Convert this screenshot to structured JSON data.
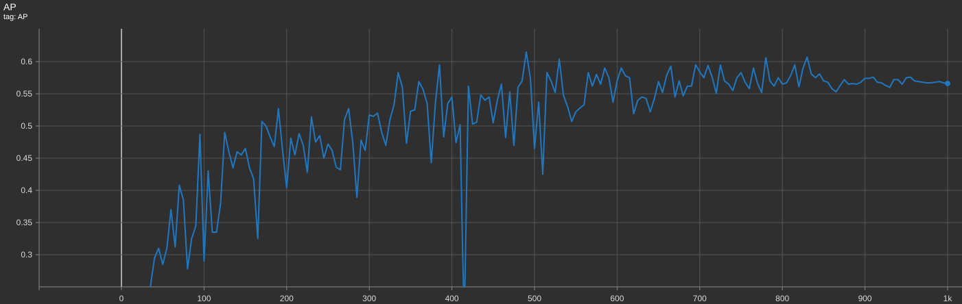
{
  "header": {
    "title": "AP",
    "subtitle": "tag: AP"
  },
  "colors": {
    "background": "#2f2f2f",
    "grid": "#555555",
    "axis": "#8a8a8a",
    "zero_line": "#cfcfcf",
    "series": "#1f78c1"
  },
  "chart_data": {
    "type": "line",
    "title": "AP",
    "subtitle": "tag: AP",
    "xlabel": "",
    "ylabel": "",
    "xlim": [
      -100,
      1000
    ],
    "ylim": [
      0.25,
      0.65
    ],
    "grid": true,
    "legend": "none",
    "x_ticks": [
      {
        "value": 0,
        "label": "0"
      },
      {
        "value": 100,
        "label": "100"
      },
      {
        "value": 200,
        "label": "200"
      },
      {
        "value": 300,
        "label": "300"
      },
      {
        "value": 400,
        "label": "400"
      },
      {
        "value": 500,
        "label": "500"
      },
      {
        "value": 600,
        "label": "600"
      },
      {
        "value": 700,
        "label": "700"
      },
      {
        "value": 800,
        "label": "800"
      },
      {
        "value": 900,
        "label": "900"
      },
      {
        "value": 1000,
        "label": "1k"
      }
    ],
    "y_ticks": [
      {
        "value": 0.3,
        "label": "0.3"
      },
      {
        "value": 0.35,
        "label": "0.35"
      },
      {
        "value": 0.4,
        "label": "0.4"
      },
      {
        "value": 0.45,
        "label": "0.45"
      },
      {
        "value": 0.5,
        "label": "0.5"
      },
      {
        "value": 0.55,
        "label": "0.55"
      },
      {
        "value": 0.6,
        "label": "0.6"
      }
    ],
    "series": [
      {
        "x": [
          35,
          40,
          45,
          50,
          55,
          60,
          65,
          70,
          75,
          80,
          85,
          90,
          95,
          100,
          105,
          110,
          115,
          120,
          125,
          130,
          135,
          140,
          145,
          150,
          155,
          160,
          165,
          170,
          175,
          180,
          185,
          190,
          195,
          200,
          205,
          210,
          215,
          220,
          225,
          230,
          235,
          240,
          245,
          250,
          255,
          260,
          265,
          270,
          275,
          280,
          285,
          290,
          295,
          300,
          305,
          310,
          315,
          320,
          325,
          330,
          335,
          340,
          345,
          350,
          355,
          360,
          365,
          370,
          375,
          380,
          385,
          390,
          395,
          400,
          405,
          410,
          413,
          415,
          420,
          425,
          430,
          435,
          440,
          445,
          450,
          455,
          460,
          465,
          470,
          475,
          480,
          485,
          490,
          495,
          500,
          505,
          510,
          515,
          520,
          525,
          530,
          535,
          540,
          545,
          550,
          555,
          560,
          565,
          570,
          575,
          580,
          585,
          590,
          595,
          600,
          605,
          610,
          615,
          620,
          625,
          630,
          635,
          640,
          645,
          650,
          655,
          660,
          665,
          670,
          675,
          680,
          685,
          690,
          695,
          700,
          705,
          710,
          715,
          720,
          725,
          730,
          735,
          740,
          745,
          750,
          755,
          760,
          765,
          770,
          775,
          780,
          785,
          790,
          795,
          800,
          805,
          810,
          815,
          820,
          825,
          830,
          835,
          840,
          845,
          850,
          855,
          860,
          865,
          870,
          875,
          880,
          885,
          890,
          895,
          900,
          905,
          910,
          915,
          920,
          925,
          930,
          935,
          940,
          945,
          950,
          955,
          960,
          965,
          970,
          975,
          980,
          985,
          990,
          995,
          1000
        ],
        "y": [
          0.25,
          0.295,
          0.31,
          0.285,
          0.31,
          0.37,
          0.312,
          0.408,
          0.385,
          0.278,
          0.325,
          0.345,
          0.487,
          0.29,
          0.43,
          0.335,
          0.335,
          0.38,
          0.49,
          0.46,
          0.435,
          0.46,
          0.455,
          0.465,
          0.435,
          0.418,
          0.325,
          0.507,
          0.5,
          0.483,
          0.468,
          0.527,
          0.462,
          0.404,
          0.481,
          0.455,
          0.488,
          0.47,
          0.428,
          0.514,
          0.475,
          0.485,
          0.45,
          0.472,
          0.462,
          0.436,
          0.432,
          0.51,
          0.527,
          0.475,
          0.389,
          0.478,
          0.462,
          0.517,
          0.515,
          0.52,
          0.49,
          0.47,
          0.51,
          0.533,
          0.583,
          0.56,
          0.473,
          0.523,
          0.525,
          0.569,
          0.557,
          0.535,
          0.443,
          0.535,
          0.595,
          0.483,
          0.535,
          0.545,
          0.474,
          0.502,
          0.3,
          0.2,
          0.562,
          0.503,
          0.506,
          0.548,
          0.54,
          0.545,
          0.505,
          0.54,
          0.565,
          0.482,
          0.553,
          0.47,
          0.56,
          0.57,
          0.615,
          0.574,
          0.465,
          0.537,
          0.425,
          0.583,
          0.57,
          0.552,
          0.604,
          0.548,
          0.53,
          0.507,
          0.522,
          0.528,
          0.533,
          0.583,
          0.562,
          0.58,
          0.565,
          0.59,
          0.575,
          0.537,
          0.57,
          0.59,
          0.578,
          0.575,
          0.519,
          0.54,
          0.545,
          0.543,
          0.522,
          0.542,
          0.569,
          0.552,
          0.579,
          0.593,
          0.545,
          0.57,
          0.547,
          0.562,
          0.562,
          0.595,
          0.584,
          0.575,
          0.594,
          0.576,
          0.551,
          0.595,
          0.57,
          0.565,
          0.555,
          0.575,
          0.583,
          0.568,
          0.558,
          0.59,
          0.566,
          0.552,
          0.606,
          0.57,
          0.562,
          0.575,
          0.565,
          0.567,
          0.578,
          0.595,
          0.561,
          0.59,
          0.607,
          0.581,
          0.575,
          0.581,
          0.57,
          0.568,
          0.558,
          0.553,
          0.563,
          0.572,
          0.565,
          0.566,
          0.565,
          0.568,
          0.574,
          0.574,
          0.576,
          0.568,
          0.567,
          0.563,
          0.56,
          0.572,
          0.572,
          0.565,
          0.575,
          0.576,
          0.57,
          0.569,
          0.568,
          0.567,
          0.567,
          0.568,
          0.569,
          0.567,
          0.566
        ]
      }
    ]
  }
}
